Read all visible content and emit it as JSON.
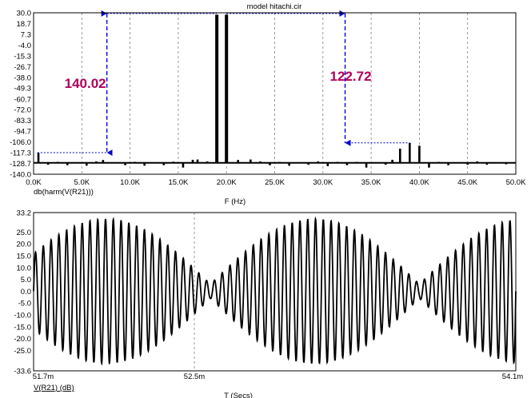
{
  "window_title": "model hitachi.cir",
  "colors": {
    "background": "#ffffff",
    "trace": "#000000",
    "grid": "#808080",
    "annotation_arrow": "#0000cc",
    "annotation_text": "#b0005a"
  },
  "chart_data": [
    {
      "type": "bar",
      "title": "model hitachi.cir",
      "trace_label": "db(harm(V(R21)))",
      "xlabel": "F (Hz)",
      "ylabel": "",
      "xlim": [
        0,
        50000
      ],
      "ylim": [
        -140.0,
        30.0
      ],
      "x_tick_labels": [
        "0.0K",
        "5.0K",
        "10.0K",
        "15.0K",
        "20.0K",
        "25.0K",
        "30.0K",
        "35.0K",
        "40.0K",
        "45.0K",
        "50.0K"
      ],
      "x_ticks": [
        0,
        5000,
        10000,
        15000,
        20000,
        25000,
        30000,
        35000,
        40000,
        45000,
        50000
      ],
      "y_tick_labels": [
        "30.0",
        "18.7",
        "7.3",
        "-4.0",
        "-15.3",
        "-26.7",
        "-38.0",
        "-49.3",
        "-60.7",
        "-72.0",
        "-83.3",
        "-94.7",
        "-106.0",
        "-117.3",
        "-128.7",
        "-140.0"
      ],
      "y_ticks": [
        30.0,
        18.7,
        7.3,
        -4.0,
        -15.3,
        -26.7,
        -38.0,
        -49.3,
        -60.7,
        -72.0,
        -83.3,
        -94.7,
        -106.0,
        -117.3,
        -128.7,
        -140.0
      ],
      "grid": true,
      "floor": -128.0,
      "x": [
        19000,
        20000,
        38000,
        39000,
        40000,
        500,
        7200,
        17000,
        21200,
        1500,
        2500,
        3500,
        4500,
        5500,
        6500,
        8500,
        9500,
        10500,
        11500,
        12500,
        13500,
        14500,
        15500,
        16500,
        18000,
        22500,
        23500,
        24500,
        25500,
        26500,
        27500,
        28500,
        29500,
        30500,
        31500,
        32500,
        33500,
        34500,
        35500,
        36500,
        37200,
        41000,
        42000,
        43000,
        44000,
        45000,
        46000,
        47000,
        48000,
        49000
      ],
      "values": [
        28.0,
        28.0,
        -113.0,
        -107.0,
        -110.0,
        -117.5,
        -125.0,
        -124.5,
        -125.0,
        -130.0,
        -127.0,
        -130.5,
        -127.5,
        -131.0,
        -126.5,
        -127.5,
        -130.5,
        -127.0,
        -131.0,
        -127.5,
        -130.5,
        -126.8,
        -133.0,
        -124.8,
        -126.5,
        -124.5,
        -126.5,
        -130.5,
        -127.0,
        -131.0,
        -127.5,
        -130.0,
        -126.5,
        -131.5,
        -127.0,
        -130.5,
        -127.0,
        -133.0,
        -127.5,
        -130.0,
        -124.8,
        -133.0,
        -127.0,
        -130.5,
        -127.5,
        -130.0,
        -126.5,
        -130.0,
        -127.5,
        -129.5
      ],
      "annotations": [
        {
          "text": "140.02",
          "from_x": 400,
          "from_y": -117.3,
          "to_x": 19000,
          "to_y": 28.0
        },
        {
          "text": "122.72",
          "from_x": 20000,
          "from_y": 28.0,
          "to_x": 39000,
          "to_y": -107.0
        }
      ]
    },
    {
      "type": "line",
      "title": "",
      "trace_label": "V(R21) (dB)",
      "xlabel": "T (Secs)",
      "ylabel": "",
      "xlim": [
        51.7,
        54.1
      ],
      "ylim": [
        -33.6,
        33.2
      ],
      "x_tick_labels": [
        "51.7m",
        "52.5m",
        "54.1m"
      ],
      "y_tick_labels": [
        "33.2",
        "25.0",
        "20.0",
        "15.0",
        "10.0",
        "5.0",
        "0.0",
        "-5.0",
        "-10.0",
        "-15.0",
        "-20.0",
        "-25.0",
        "-33.6"
      ],
      "y_ticks": [
        33.2,
        25.0,
        20.0,
        15.0,
        10.0,
        5.0,
        0.0,
        -5.0,
        -10.0,
        -15.0,
        -20.0,
        -25.0,
        -33.6
      ],
      "grid": true,
      "series": [
        {
          "carrier_cycles": 62,
          "amplitude": 30.5,
          "envelope_nulls": [
            52.58,
            53.62
          ],
          "envelope_null_level": 3.0
        }
      ]
    }
  ]
}
